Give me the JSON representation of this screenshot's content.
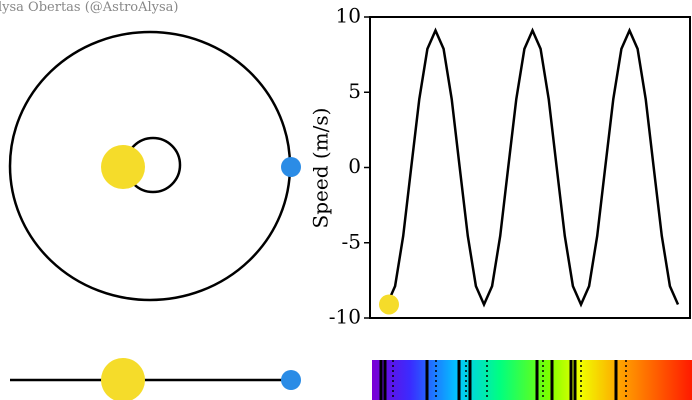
{
  "credit": "lysa Obertas (@AstroAlysa)",
  "chart_data": {
    "type": "line",
    "ylabel": "Speed (m/s)",
    "color": "#000000",
    "values": [
      -9.1,
      -7.88,
      -4.55,
      0,
      4.55,
      7.88,
      9.1,
      7.88,
      4.55,
      0,
      -4.55,
      -7.88,
      -9.1,
      -7.88,
      -4.55,
      0,
      4.55,
      7.88,
      9.1,
      7.88,
      4.55,
      0,
      -4.55,
      -7.88,
      -9.1,
      -7.88,
      -4.55,
      0,
      4.55,
      7.88,
      9.1,
      7.88,
      4.55,
      0,
      -4.55,
      -7.88,
      -9.1
    ],
    "ylim": [
      -10,
      10
    ],
    "yticks": [
      -10,
      -5,
      0,
      5,
      10
    ]
  }
}
